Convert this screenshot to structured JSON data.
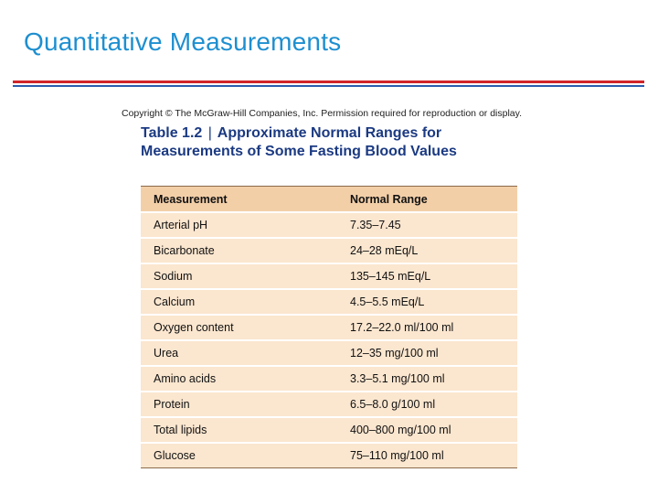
{
  "slide": {
    "title": "Quantitative Measurements"
  },
  "figure": {
    "copyright": "Copyright © The McGraw-Hill Companies, Inc. Permission required for reproduction or display.",
    "table_label": "Table 1.2",
    "separator": "|",
    "table_title": "Approximate Normal Ranges for Measurements of Some Fasting Blood Values",
    "columns": [
      "Measurement",
      "Normal Range"
    ],
    "rows": [
      [
        "Arterial pH",
        "7.35–7.45"
      ],
      [
        "Bicarbonate",
        "24–28 mEq/L"
      ],
      [
        "Sodium",
        "135–145 mEq/L"
      ],
      [
        "Calcium",
        "4.5–5.5 mEq/L"
      ],
      [
        "Oxygen content",
        "17.2–22.0 ml/100 ml"
      ],
      [
        "Urea",
        "12–35 mg/100 ml"
      ],
      [
        "Amino acids",
        "3.3–5.1 mg/100 ml"
      ],
      [
        "Protein",
        "6.5–8.0 g/100 ml"
      ],
      [
        "Total lipids",
        "400–800 mg/100 ml"
      ],
      [
        "Glucose",
        "75–110 mg/100 ml"
      ]
    ],
    "colors": {
      "title_blue": "#1e8fd0",
      "rule_red": "#d2232a",
      "rule_blue": "#2a5db0",
      "caption_navy": "#1b3a82",
      "header_bg": "#f3cfa8",
      "row_bg": "#fbe6cf"
    }
  }
}
